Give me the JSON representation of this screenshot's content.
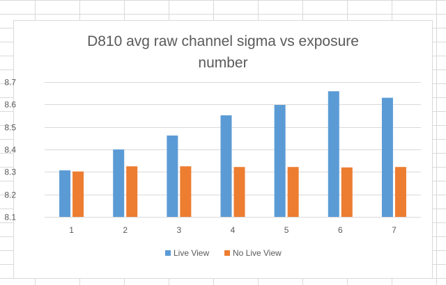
{
  "colors": {
    "live_view": "#5b9bd5",
    "no_live_view": "#ed7d31",
    "gridline": "#d9d9d9",
    "text": "#595959"
  },
  "chart_data": {
    "type": "bar",
    "title": "D810 avg raw channel sigma vs exposure\nnumber",
    "xlabel": "",
    "ylabel": "",
    "categories": [
      "1",
      "2",
      "3",
      "4",
      "5",
      "6",
      "7"
    ],
    "series": [
      {
        "name": "Live View",
        "values": [
          8.307,
          8.4,
          8.462,
          8.552,
          8.598,
          8.659,
          8.63
        ]
      },
      {
        "name": "No Live View",
        "values": [
          8.302,
          8.325,
          8.325,
          8.322,
          8.322,
          8.32,
          8.322
        ]
      }
    ],
    "ylim": [
      8.1,
      8.7
    ],
    "yticks": [
      "8.1",
      "8.2",
      "8.3",
      "8.4",
      "8.5",
      "8.6",
      "8.7"
    ],
    "grid": true,
    "legend": "bottom"
  }
}
